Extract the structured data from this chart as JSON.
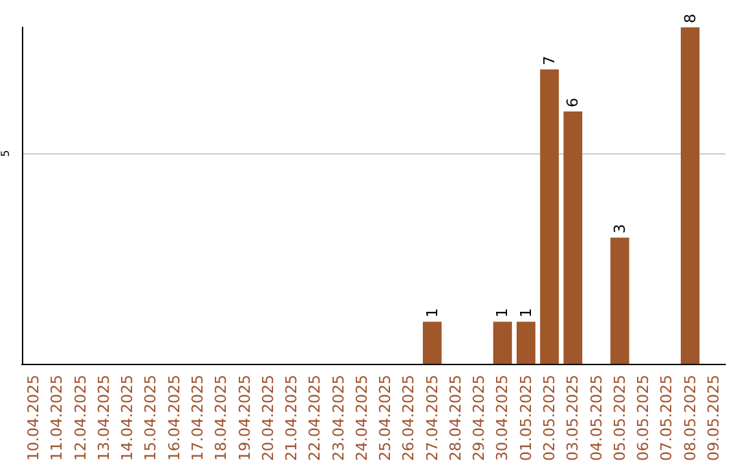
{
  "chart_data": {
    "type": "bar",
    "categories": [
      "10.04.2025",
      "11.04.2025",
      "12.04.2025",
      "13.04.2025",
      "14.04.2025",
      "15.04.2025",
      "16.04.2025",
      "17.04.2025",
      "18.04.2025",
      "19.04.2025",
      "20.04.2025",
      "21.04.2025",
      "22.04.2025",
      "23.04.2025",
      "24.04.2025",
      "25.04.2025",
      "26.04.2025",
      "27.04.2025",
      "28.04.2025",
      "29.04.2025",
      "30.04.2025",
      "01.05.2025",
      "02.05.2025",
      "03.05.2025",
      "04.05.2025",
      "05.05.2025",
      "06.05.2025",
      "07.05.2025",
      "08.05.2025",
      "09.05.2025"
    ],
    "values": [
      null,
      null,
      null,
      null,
      null,
      null,
      null,
      null,
      null,
      null,
      null,
      null,
      null,
      null,
      null,
      null,
      null,
      1,
      null,
      null,
      1,
      1,
      7,
      6,
      null,
      3,
      null,
      null,
      8,
      null
    ],
    "color": "#a0572a",
    "ylim": [
      0,
      8
    ],
    "yticks": [
      5
    ],
    "grid": "y",
    "data_labels": true
  }
}
